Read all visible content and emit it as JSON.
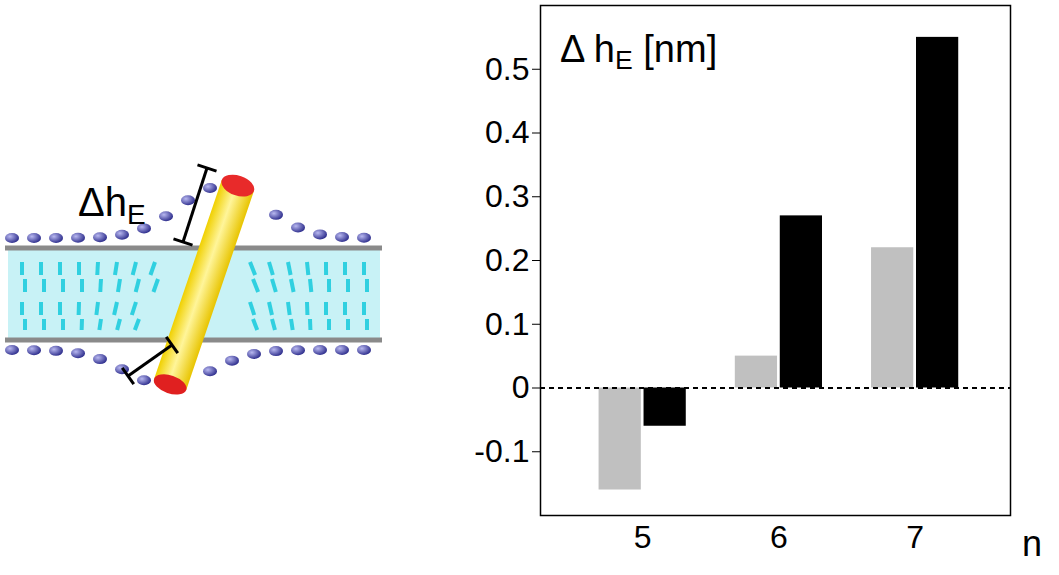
{
  "chart_data": {
    "type": "bar",
    "ylabel": "Δ hE [nm]",
    "xlabel": "n",
    "categories": [
      5,
      6,
      7
    ],
    "series": [
      {
        "color": "#c0c0c0",
        "values": [
          -0.16,
          0.05,
          0.22
        ]
      },
      {
        "color": "#000000",
        "values": [
          -0.06,
          0.27,
          0.55
        ]
      }
    ],
    "ylim": [
      -0.2,
      0.6
    ],
    "yticks": [
      -0.1,
      0,
      0.1,
      0.2,
      0.3,
      0.4,
      0.5
    ],
    "grid": false
  },
  "schematic": {
    "label": "ΔhE"
  }
}
